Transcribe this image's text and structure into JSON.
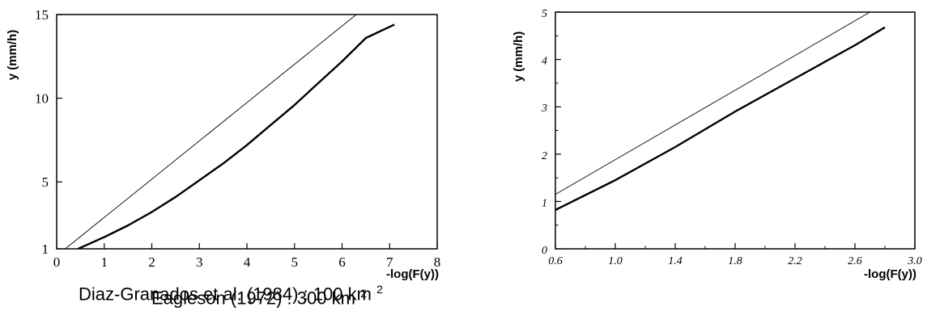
{
  "chart_data": [
    {
      "type": "line",
      "caption": "Diaz-Granados et al. (1984) : 100 km",
      "caption_sup": "2",
      "xlabel": "-log(F(y))",
      "ylabel": "y (mm/h)",
      "xlim": [
        0,
        8
      ],
      "ylim": [
        1,
        15
      ],
      "x_ticks": [
        "0",
        "1",
        "2",
        "3",
        "4",
        "5",
        "6",
        "7",
        "8"
      ],
      "y_ticks": [
        "1",
        "5",
        "10",
        "15"
      ],
      "series": [
        {
          "style": "thin",
          "x": [
            0.18,
            6.3
          ],
          "y": [
            1,
            15
          ]
        },
        {
          "style": "thick",
          "x": [
            0.45,
            1.0,
            1.5,
            2.0,
            2.5,
            3.0,
            3.5,
            4.0,
            4.5,
            5.0,
            5.5,
            6.0,
            6.5,
            7.1
          ],
          "y": [
            1.0,
            1.7,
            2.4,
            3.2,
            4.1,
            5.1,
            6.1,
            7.2,
            8.4,
            9.6,
            10.9,
            12.2,
            13.6,
            14.4
          ]
        }
      ]
    },
    {
      "type": "line",
      "caption": "Eagleson (1972) : 300 km",
      "caption_sup": "2",
      "xlabel": "-log(F(y))",
      "ylabel": "y (mm/h)",
      "xlim": [
        0.6,
        3.0
      ],
      "ylim": [
        0,
        5
      ],
      "x_ticks": [
        "0.6",
        "1.0",
        "1.4",
        "1.8",
        "2.2",
        "2.6",
        "3.0"
      ],
      "y_ticks": [
        "0",
        "1",
        "2",
        "3",
        "4",
        "5"
      ],
      "series": [
        {
          "style": "thin",
          "x": [
            0.6,
            2.7
          ],
          "y": [
            1.15,
            5.0
          ]
        },
        {
          "style": "thick",
          "x": [
            0.6,
            1.0,
            1.4,
            1.8,
            2.2,
            2.6,
            2.8
          ],
          "y": [
            0.82,
            1.45,
            2.15,
            2.9,
            3.6,
            4.3,
            4.68
          ]
        }
      ]
    }
  ]
}
